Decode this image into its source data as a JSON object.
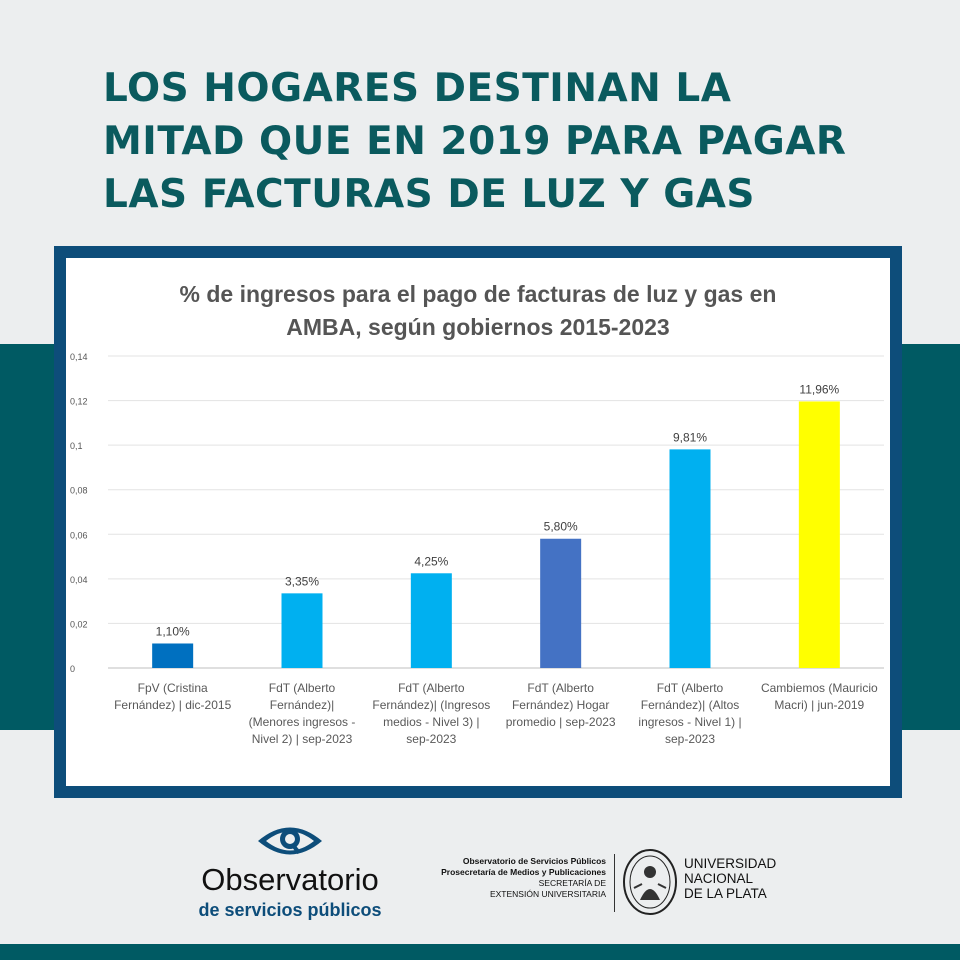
{
  "headline": "LOS HOGARES DESTINAN LA\nMITAD QUE EN 2019 PARA PAGAR\nLAS FACTURAS DE LUZ Y GAS",
  "colors": {
    "band": "#005a63",
    "frame": "#0d4d7a",
    "headline": "#0a5a5e"
  },
  "chart_data": {
    "type": "bar",
    "title": "% de ingresos para el pago de facturas de luz y gas en\nAMBA, según gobiernos 2015-2023",
    "xlabel": "",
    "ylabel": "",
    "ylim": [
      0,
      0.14
    ],
    "yticks": [
      "0",
      "0,02",
      "0,04",
      "0,06",
      "0,08",
      "0,1",
      "0,12",
      "0,14"
    ],
    "grid": true,
    "categories": [
      [
        "FpV (Cristina",
        "Fernández) | dic-2015"
      ],
      [
        "FdT (Alberto",
        "Fernández)|",
        "(Menores ingresos -",
        "Nivel 2) | sep-2023"
      ],
      [
        "FdT (Alberto",
        "Fernández)| (Ingresos",
        "medios - Nivel 3) |",
        "sep-2023"
      ],
      [
        "FdT (Alberto",
        "Fernández) Hogar",
        "promedio | sep-2023"
      ],
      [
        "FdT (Alberto",
        "Fernández)| (Altos",
        "ingresos - Nivel 1) |",
        "sep-2023"
      ],
      [
        "Cambiemos (Mauricio",
        "Macri) | jun-2019"
      ]
    ],
    "values": [
      0.011,
      0.0335,
      0.0425,
      0.058,
      0.0981,
      0.1196
    ],
    "data_labels": [
      "1,10%",
      "3,35%",
      "4,25%",
      "5,80%",
      "9,81%",
      "11,96%"
    ],
    "bar_colors": [
      "#0070c0",
      "#00b0f0",
      "#00b0f0",
      "#4472c4",
      "#00b0f0",
      "#ffff00"
    ]
  },
  "footer": {
    "logo_icon": "eye-icon",
    "logo_name": "Observatorio",
    "logo_sub": "de servicios públicos",
    "credits": {
      "line1": "Observatorio de Servicios Públicos",
      "line2": "Prosecretaría de Medios y Publicaciones",
      "line3": "SECRETARÍA DE",
      "line4": "EXTENSIÓN UNIVERSITARIA"
    },
    "seal_icon": "university-seal-icon",
    "university": {
      "line1": "UNIVERSIDAD",
      "line2": "NACIONAL",
      "line3": "DE LA PLATA"
    }
  }
}
